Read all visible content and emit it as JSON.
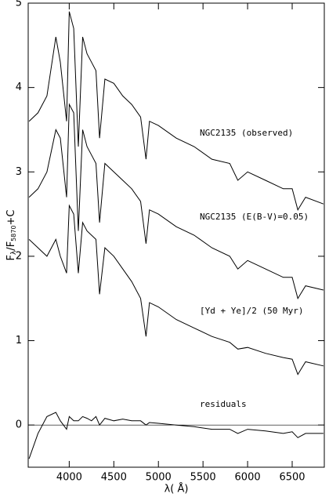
{
  "chart_data": {
    "type": "line",
    "xlabel": "λ( Å)",
    "ylabel": [
      "F",
      "λ",
      "/F",
      "5870",
      "+C"
    ],
    "x": [
      3550,
      3650,
      3750,
      3850,
      3900,
      3970,
      4000,
      4050,
      4102,
      4150,
      4200,
      4250,
      4300,
      4340,
      4400,
      4500,
      4600,
      4700,
      4800,
      4861,
      4900,
      5000,
      5200,
      5400,
      5600,
      5800,
      5890,
      6000,
      6200,
      6400,
      6500,
      6563,
      6650,
      6850
    ],
    "series": [
      {
        "name": "NGC2135 (observed)",
        "color": "#000000",
        "values": [
          3.6,
          3.7,
          3.9,
          4.6,
          4.3,
          3.6,
          4.9,
          4.7,
          3.3,
          4.6,
          4.4,
          4.3,
          4.2,
          3.4,
          4.1,
          4.05,
          3.9,
          3.8,
          3.65,
          3.15,
          3.6,
          3.55,
          3.4,
          3.3,
          3.15,
          3.1,
          2.9,
          3.0,
          2.9,
          2.8,
          2.8,
          2.55,
          2.7,
          2.62
        ]
      },
      {
        "name": "NGC2135 (E(B-V)=0.05)",
        "color": "#000000",
        "values": [
          2.7,
          2.8,
          3.0,
          3.5,
          3.4,
          2.7,
          3.8,
          3.7,
          2.3,
          3.5,
          3.3,
          3.2,
          3.1,
          2.4,
          3.1,
          3.0,
          2.9,
          2.8,
          2.65,
          2.15,
          2.55,
          2.5,
          2.35,
          2.25,
          2.1,
          2.0,
          1.85,
          1.95,
          1.85,
          1.75,
          1.75,
          1.5,
          1.65,
          1.6
        ]
      },
      {
        "name": "[Yd + Ye]/2 (50 Myr)",
        "color": "#000000",
        "values": [
          2.2,
          2.1,
          2.0,
          2.2,
          2.0,
          1.8,
          2.6,
          2.5,
          1.8,
          2.4,
          2.3,
          2.25,
          2.2,
          1.55,
          2.1,
          2.0,
          1.85,
          1.7,
          1.5,
          1.05,
          1.45,
          1.4,
          1.25,
          1.15,
          1.05,
          0.98,
          0.9,
          0.92,
          0.85,
          0.8,
          0.78,
          0.6,
          0.75,
          0.7
        ]
      },
      {
        "name": "residuals",
        "color": "#000000",
        "values": [
          -0.4,
          -0.1,
          0.1,
          0.15,
          0.05,
          -0.05,
          0.1,
          0.05,
          0.05,
          0.1,
          0.08,
          0.05,
          0.1,
          0.0,
          0.08,
          0.05,
          0.07,
          0.05,
          0.05,
          0.0,
          0.03,
          0.02,
          0.0,
          -0.02,
          -0.05,
          -0.05,
          -0.1,
          -0.05,
          -0.07,
          -0.1,
          -0.08,
          -0.15,
          -0.1,
          -0.1
        ]
      }
    ],
    "hlines": [
      0
    ],
    "xlim": [
      3540,
      6860
    ],
    "xticks": [
      4000,
      4500,
      5000,
      5500,
      6000,
      6500
    ],
    "ylim": [
      -0.5,
      5
    ],
    "yticks": [
      0,
      1,
      2,
      3,
      4,
      5
    ],
    "grid": false
  }
}
